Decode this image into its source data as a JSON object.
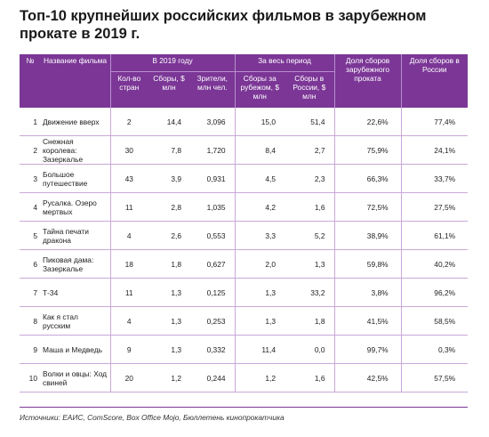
{
  "title": "Топ-10 крупнейших российских фильмов в зарубежном прокате в 2019 г.",
  "header": {
    "num": "№",
    "name": "Название фильма",
    "group_2019": "В 2019 году",
    "group_all": "За весь период",
    "countries": "Кол-во стран",
    "gross_2019": "Сборы, $ млн",
    "viewers": "Зрители, млн чел.",
    "gross_abroad": "Сборы за рубежом, $ млн",
    "gross_russia": "Сборы в России, $ млн",
    "share_abroad": "Доля сборов зарубежного проката",
    "share_russia": "Доля сборов в России"
  },
  "rows": [
    {
      "num": "1",
      "name": "Движение вверх",
      "countries": "2",
      "gross_2019": "14,4",
      "viewers": "3,096",
      "gross_abroad": "15,0",
      "gross_russia": "51,4",
      "share_abroad": "22,6%",
      "share_russia": "77,4%"
    },
    {
      "num": "2",
      "name": "Снежная королева: Зазеркалье",
      "countries": "30",
      "gross_2019": "7,8",
      "viewers": "1,720",
      "gross_abroad": "8,4",
      "gross_russia": "2,7",
      "share_abroad": "75,9%",
      "share_russia": "24,1%"
    },
    {
      "num": "3",
      "name": "Большое путешествие",
      "countries": "43",
      "gross_2019": "3,9",
      "viewers": "0,931",
      "gross_abroad": "4,5",
      "gross_russia": "2,3",
      "share_abroad": "66,3%",
      "share_russia": "33,7%"
    },
    {
      "num": "4",
      "name": "Русалка. Озеро мертвых",
      "countries": "11",
      "gross_2019": "2,8",
      "viewers": "1,035",
      "gross_abroad": "4,2",
      "gross_russia": "1,6",
      "share_abroad": "72,5%",
      "share_russia": "27,5%"
    },
    {
      "num": "5",
      "name": "Тайна печати дракона",
      "countries": "4",
      "gross_2019": "2,6",
      "viewers": "0,553",
      "gross_abroad": "3,3",
      "gross_russia": "5,2",
      "share_abroad": "38,9%",
      "share_russia": "61,1%"
    },
    {
      "num": "6",
      "name": "Пиковая дама: Зазеркалье",
      "countries": "18",
      "gross_2019": "1,8",
      "viewers": "0,627",
      "gross_abroad": "2,0",
      "gross_russia": "1,3",
      "share_abroad": "59,8%",
      "share_russia": "40,2%"
    },
    {
      "num": "7",
      "name": "Т-34",
      "countries": "11",
      "gross_2019": "1,3",
      "viewers": "0,125",
      "gross_abroad": "1,3",
      "gross_russia": "33,2",
      "share_abroad": "3,8%",
      "share_russia": "96,2%"
    },
    {
      "num": "8",
      "name": "Как я стал русским",
      "countries": "4",
      "gross_2019": "1,3",
      "viewers": "0,253",
      "gross_abroad": "1,3",
      "gross_russia": "1,8",
      "share_abroad": "41,5%",
      "share_russia": "58,5%"
    },
    {
      "num": "9",
      "name": "Маша и Медведь",
      "countries": "9",
      "gross_2019": "1,3",
      "viewers": "0,332",
      "gross_abroad": "11,4",
      "gross_russia": "0,0",
      "share_abroad": "99,7%",
      "share_russia": "0,3%"
    },
    {
      "num": "10",
      "name": "Волки и овцы: Ход свиней",
      "countries": "20",
      "gross_2019": "1,2",
      "viewers": "0,244",
      "gross_abroad": "1,2",
      "gross_russia": "1,6",
      "share_abroad": "42,5%",
      "share_russia": "57,5%"
    }
  ],
  "source": "Источники: ЕАИС, ComScore, Box Office Mojo, Бюллетень кинопрокатчика",
  "colors": {
    "header_bg": "#7b3696",
    "row_border": "#c9a8d8"
  }
}
